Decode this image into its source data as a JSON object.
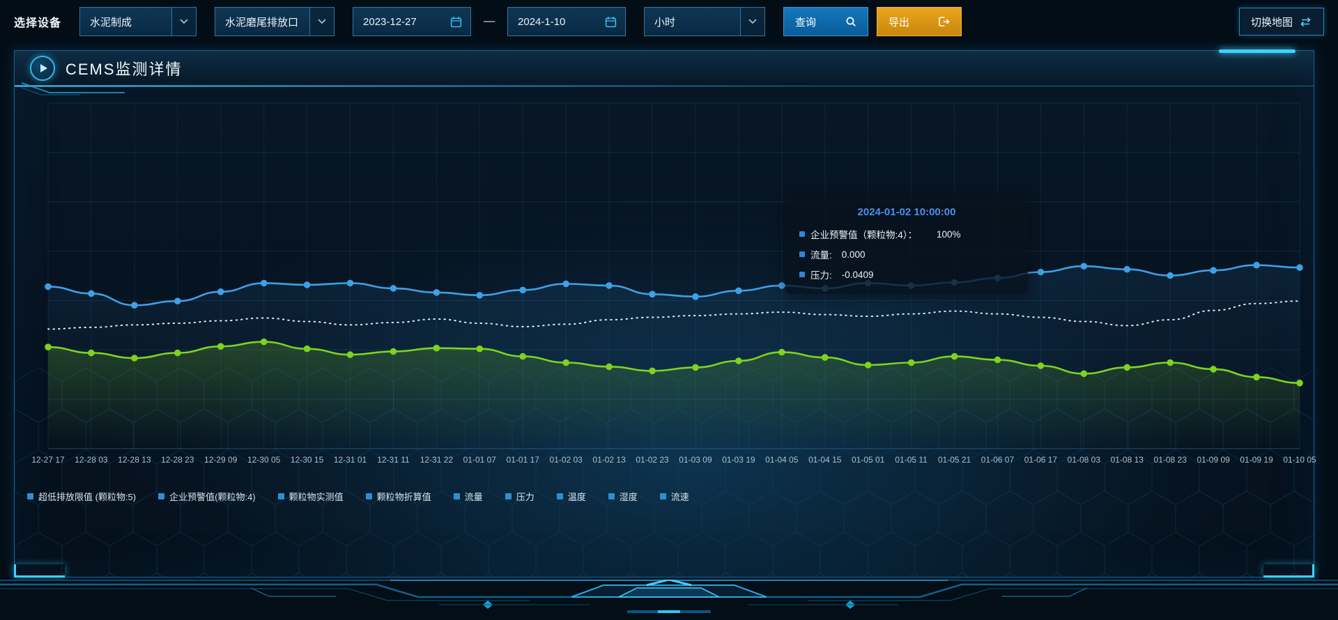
{
  "toolbar": {
    "device_label": "选择设备",
    "selects": {
      "device": "水泥制成",
      "outlet": "水泥磨尾排放口",
      "interval": "小时"
    },
    "date_start": "2023-12-27",
    "date_separator": "—",
    "date_end": "2024-1-10",
    "query_label": "查询",
    "export_label": "导出",
    "switch_map_label": "切换地图"
  },
  "panel": {
    "title": "CEMS监测详情"
  },
  "tooltip": {
    "title": "2024-01-02 10:00:00",
    "items": [
      {
        "label": "企业预警值（颗粒物:4）：",
        "value": "100%"
      },
      {
        "label": "流量:",
        "value": "0.000"
      },
      {
        "label": "压力:",
        "value": "-0.0409"
      }
    ]
  },
  "legend": [
    "超低排放限值 (颗粒物:5)",
    "企业预警值(颗粒物:4)",
    "颗粒物实测值",
    "颗粒物折算值",
    "流量",
    "压力",
    "温度",
    "湿度",
    "流速"
  ],
  "chart_data": {
    "type": "line",
    "title": "",
    "xlabel": "",
    "ylabel": "",
    "grid": true,
    "legend_position": "bottom",
    "y_axis_labels_visible": false,
    "ylim": [
      0,
      100
    ],
    "categories": [
      "12-27 17",
      "12-28 03",
      "12-28 13",
      "12-28 23",
      "12-29 09",
      "12-30 05",
      "12-30 15",
      "12-31 01",
      "12-31 11",
      "12-31 22",
      "01-01 07",
      "01-01 17",
      "01-02 03",
      "01-02 13",
      "01-02 23",
      "01-03 09",
      "01-03 19",
      "01-04 05",
      "01-04 15",
      "01-05 01",
      "01-05 11",
      "01-05 21",
      "01-06 07",
      "01-06 17",
      "01-08 03",
      "01-08 13",
      "01-08 23",
      "01-09 09",
      "01-09 19",
      "01-10 05"
    ],
    "series": [
      {
        "name": "企业预警值(颗粒物:4)",
        "color": "#e8f3fa",
        "dash": "1.5 6",
        "markers": false,
        "area": false,
        "values": [
          34.6,
          35.1,
          35.8,
          36.3,
          37,
          37.8,
          36.8,
          35.8,
          36.5,
          37.5,
          36.3,
          35.3,
          36,
          37.3,
          38,
          38.5,
          39,
          39.5,
          38.8,
          38.3,
          39,
          39.8,
          39,
          38,
          36.8,
          35.6,
          37.3,
          40,
          42,
          42.7
        ]
      },
      {
        "name": "流量",
        "color": "#3fa0e6",
        "dash": null,
        "markers": true,
        "area": true,
        "area_opacity": 0.1,
        "values": [
          46.9,
          44.9,
          41.5,
          42.7,
          45.4,
          47.9,
          47.4,
          47.9,
          46.4,
          45.2,
          44.4,
          45.9,
          47.7,
          47.2,
          44.7,
          44,
          45.7,
          47.2,
          46.4,
          47.9,
          47.2,
          48.1,
          49.4,
          51.1,
          52.8,
          51.9,
          50.1,
          51.6,
          53.1,
          52.4
        ]
      },
      {
        "name": "压力",
        "color": "#7ed321",
        "dash": null,
        "markers": true,
        "area": true,
        "area_opacity": 0.22,
        "values": [
          29.4,
          27.7,
          26.2,
          27.7,
          29.6,
          30.9,
          28.9,
          27.2,
          28.1,
          29.1,
          28.9,
          26.7,
          24.9,
          23.7,
          22.5,
          23.5,
          25.4,
          27.9,
          26.4,
          24.2,
          24.9,
          26.7,
          25.7,
          24,
          21.7,
          23.5,
          24.9,
          23,
          20.7,
          19
        ]
      }
    ]
  },
  "colors": {
    "accent": "#29b6f6",
    "panel_border": "#14639a",
    "query_button": "#0f6aa9",
    "export_button": "#d9960f",
    "tooltip_title": "#4a90e8",
    "legend_marker": "#2d8fd0"
  }
}
